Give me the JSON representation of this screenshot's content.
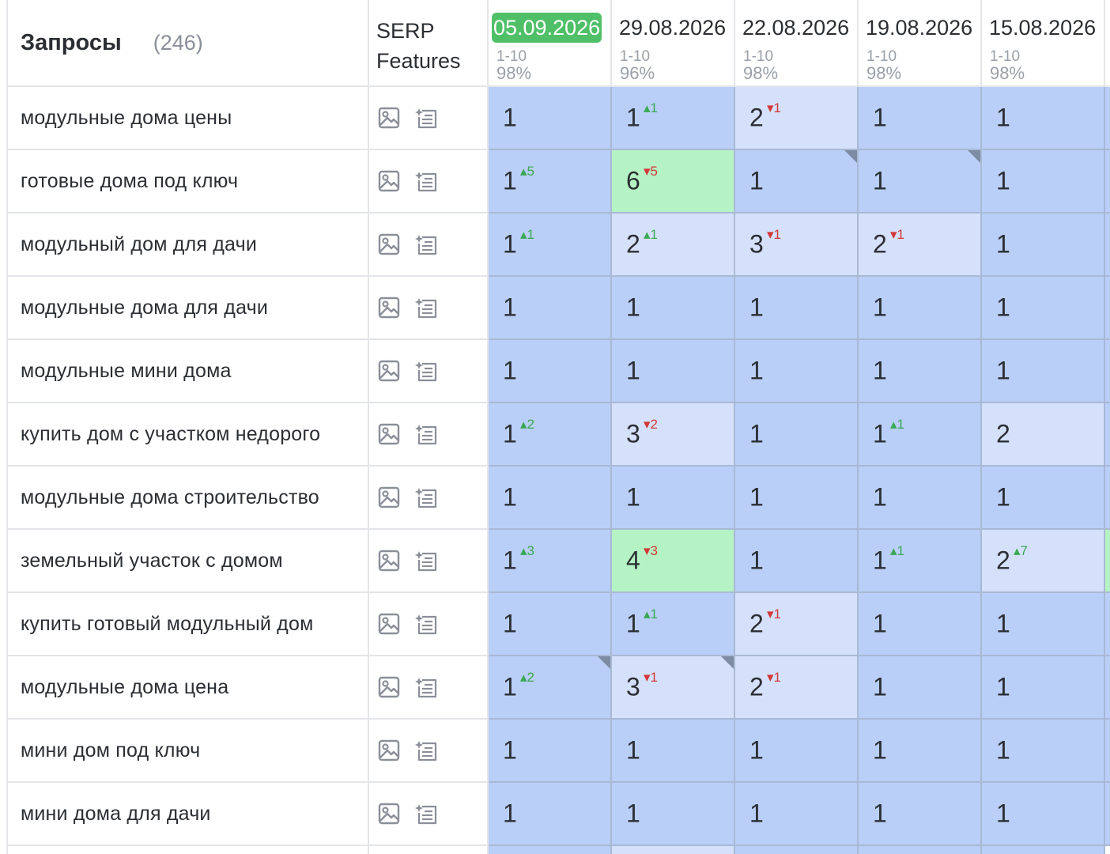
{
  "header": {
    "queries_title": "Запросы",
    "queries_count": "(246)",
    "serp_line1": "SERP",
    "serp_line2": "Features"
  },
  "dates": [
    {
      "label": "05.09.2026",
      "range": "1-10",
      "pct": "98%",
      "active": true
    },
    {
      "label": "29.08.2026",
      "range": "1-10",
      "pct": "96%",
      "active": false
    },
    {
      "label": "22.08.2026",
      "range": "1-10",
      "pct": "98%",
      "active": false
    },
    {
      "label": "19.08.2026",
      "range": "1-10",
      "pct": "98%",
      "active": false
    },
    {
      "label": "15.08.2026",
      "range": "1-10",
      "pct": "98%",
      "active": false
    }
  ],
  "rows": [
    {
      "query": "модульные дома цены",
      "extra": "dark",
      "cells": [
        {
          "v": "1",
          "bg": "dark"
        },
        {
          "v": "1",
          "d": "1",
          "dir": "up",
          "bg": "dark"
        },
        {
          "v": "2",
          "d": "1",
          "dir": "down",
          "bg": "light"
        },
        {
          "v": "1",
          "bg": "dark"
        },
        {
          "v": "1",
          "bg": "dark"
        }
      ]
    },
    {
      "query": "готовые дома под ключ",
      "extra": "dark",
      "cells": [
        {
          "v": "1",
          "d": "5",
          "dir": "up",
          "bg": "dark"
        },
        {
          "v": "6",
          "d": "5",
          "dir": "down",
          "bg": "green"
        },
        {
          "v": "1",
          "bg": "dark"
        },
        {
          "v": "1",
          "bg": "dark"
        },
        {
          "v": "1",
          "bg": "dark",
          "corner": true
        }
      ]
    },
    {
      "query": "модульный дом для дачи",
      "extra": "dark",
      "cells": [
        {
          "v": "1",
          "d": "1",
          "dir": "up",
          "bg": "dark"
        },
        {
          "v": "2",
          "d": "1",
          "dir": "up",
          "bg": "light"
        },
        {
          "v": "3",
          "d": "1",
          "dir": "down",
          "bg": "light"
        },
        {
          "v": "2",
          "d": "1",
          "dir": "down",
          "bg": "light"
        },
        {
          "v": "1",
          "bg": "dark"
        }
      ]
    },
    {
      "query": "модульные дома для дачи",
      "extra": "dark",
      "cells": [
        {
          "v": "1",
          "bg": "dark"
        },
        {
          "v": "1",
          "bg": "dark"
        },
        {
          "v": "1",
          "bg": "dark"
        },
        {
          "v": "1",
          "bg": "dark"
        },
        {
          "v": "1",
          "bg": "dark"
        }
      ]
    },
    {
      "query": "модульные мини дома",
      "extra": "dark",
      "cells": [
        {
          "v": "1",
          "bg": "dark"
        },
        {
          "v": "1",
          "bg": "dark"
        },
        {
          "v": "1",
          "bg": "dark"
        },
        {
          "v": "1",
          "bg": "dark"
        },
        {
          "v": "1",
          "bg": "dark"
        }
      ]
    },
    {
      "query": "купить дом с участком недорого",
      "extra": "dark",
      "cells": [
        {
          "v": "1",
          "d": "2",
          "dir": "up",
          "bg": "dark"
        },
        {
          "v": "3",
          "d": "2",
          "dir": "down",
          "bg": "light"
        },
        {
          "v": "1",
          "bg": "dark"
        },
        {
          "v": "1",
          "d": "1",
          "dir": "up",
          "bg": "dark"
        },
        {
          "v": "2",
          "bg": "light"
        }
      ]
    },
    {
      "query": "модульные дома строительство",
      "extra": "dark",
      "cells": [
        {
          "v": "1",
          "bg": "dark"
        },
        {
          "v": "1",
          "bg": "dark"
        },
        {
          "v": "1",
          "bg": "dark"
        },
        {
          "v": "1",
          "bg": "dark"
        },
        {
          "v": "1",
          "bg": "dark"
        }
      ]
    },
    {
      "query": "земельный участок с домом",
      "extra": "green",
      "cells": [
        {
          "v": "1",
          "d": "3",
          "dir": "up",
          "bg": "dark"
        },
        {
          "v": "4",
          "d": "3",
          "dir": "down",
          "bg": "green"
        },
        {
          "v": "1",
          "bg": "dark"
        },
        {
          "v": "1",
          "d": "1",
          "dir": "up",
          "bg": "dark"
        },
        {
          "v": "2",
          "d": "7",
          "dir": "up",
          "bg": "light"
        }
      ]
    },
    {
      "query": "купить готовый модульный дом",
      "extra": "dark",
      "cells": [
        {
          "v": "1",
          "bg": "dark"
        },
        {
          "v": "1",
          "d": "1",
          "dir": "up",
          "bg": "dark"
        },
        {
          "v": "2",
          "d": "1",
          "dir": "down",
          "bg": "light"
        },
        {
          "v": "1",
          "bg": "dark"
        },
        {
          "v": "1",
          "bg": "dark"
        }
      ]
    },
    {
      "query": "модульные дома цена",
      "extra": "dark",
      "cells": [
        {
          "v": "1",
          "d": "2",
          "dir": "up",
          "bg": "dark"
        },
        {
          "v": "3",
          "d": "1",
          "dir": "down",
          "bg": "light"
        },
        {
          "v": "2",
          "d": "1",
          "dir": "down",
          "bg": "light"
        },
        {
          "v": "1",
          "bg": "dark"
        },
        {
          "v": "1",
          "bg": "dark"
        }
      ]
    },
    {
      "query": "мини дом под ключ",
      "extra": "dark",
      "cells": [
        {
          "v": "1",
          "bg": "dark"
        },
        {
          "v": "1",
          "bg": "dark"
        },
        {
          "v": "1",
          "bg": "dark"
        },
        {
          "v": "1",
          "bg": "dark"
        },
        {
          "v": "1",
          "bg": "dark"
        }
      ]
    },
    {
      "query": "мини дома для дачи",
      "extra": "dark",
      "cells": [
        {
          "v": "1",
          "bg": "dark"
        },
        {
          "v": "1",
          "bg": "dark"
        },
        {
          "v": "1",
          "bg": "dark"
        },
        {
          "v": "1",
          "bg": "dark"
        },
        {
          "v": "1",
          "bg": "dark"
        }
      ]
    }
  ],
  "colors": {
    "rank_top": "#b9cff8",
    "rank_changed": "#d5e1fb",
    "rank_improved": "#b5f3c5",
    "active_date": "#4fc068",
    "delta_up": "#3aa855",
    "delta_down": "#d33838"
  },
  "icons": {
    "serp_image": "image-icon",
    "serp_list": "featured-list-icon"
  }
}
